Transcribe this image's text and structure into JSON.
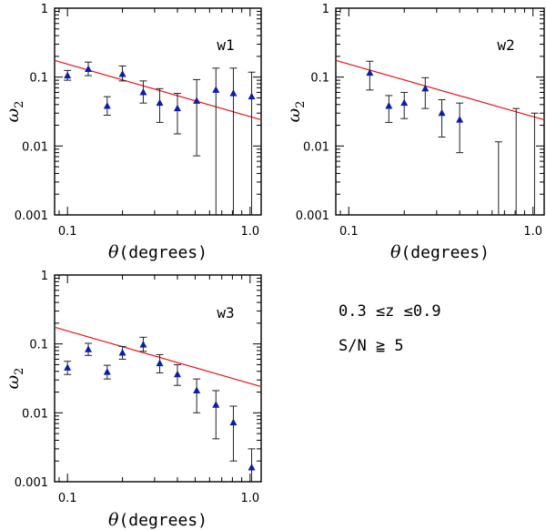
{
  "chart_data": [
    {
      "type": "scatter",
      "panel_label": "w1",
      "xlabel_symbol": "θ",
      "xlabel_text": "(degrees)",
      "ylabel_symbol": "ω",
      "ylabel_sub": "2",
      "x_scale": "log",
      "y_scale": "log",
      "xlim": [
        0.085,
        1.15
      ],
      "ylim": [
        0.001,
        1
      ],
      "x_ticks": [
        {
          "v": 0.1,
          "label": "0.1"
        },
        {
          "v": 1.0,
          "label": "1.0"
        }
      ],
      "y_ticks": [
        {
          "v": 0.001,
          "label": "0.001"
        },
        {
          "v": 0.01,
          "label": "0.01"
        },
        {
          "v": 0.1,
          "label": "0.1"
        },
        {
          "v": 1,
          "label": "1"
        }
      ],
      "fit_line": {
        "color": "#e8141c",
        "x": [
          0.085,
          1.15
        ],
        "y": [
          0.175,
          0.024
        ]
      },
      "marker_color": "#0a1fa8",
      "points": [
        {
          "x": 0.1,
          "y": 0.105,
          "lo": 0.09,
          "hi": 0.125
        },
        {
          "x": 0.13,
          "y": 0.13,
          "lo": 0.105,
          "hi": 0.165
        },
        {
          "x": 0.165,
          "y": 0.038,
          "lo": 0.028,
          "hi": 0.052
        },
        {
          "x": 0.2,
          "y": 0.11,
          "lo": 0.088,
          "hi": 0.145
        },
        {
          "x": 0.26,
          "y": 0.06,
          "lo": 0.042,
          "hi": 0.088
        },
        {
          "x": 0.32,
          "y": 0.042,
          "lo": 0.022,
          "hi": 0.068
        },
        {
          "x": 0.4,
          "y": 0.035,
          "lo": 0.015,
          "hi": 0.058
        },
        {
          "x": 0.51,
          "y": 0.045,
          "lo": 0.0072,
          "hi": 0.092
        },
        {
          "x": 0.65,
          "y": 0.065,
          "lo": 0.001,
          "hi": 0.135
        },
        {
          "x": 0.81,
          "y": 0.058,
          "lo": 0.001,
          "hi": 0.135
        },
        {
          "x": 1.02,
          "y": 0.052,
          "lo": 0.001,
          "hi": 0.118
        }
      ]
    },
    {
      "type": "scatter",
      "panel_label": "w2",
      "xlabel_symbol": "θ",
      "xlabel_text": "(degrees)",
      "ylabel_symbol": "ω",
      "ylabel_sub": "2",
      "x_scale": "log",
      "y_scale": "log",
      "xlim": [
        0.085,
        1.15
      ],
      "ylim": [
        0.001,
        1
      ],
      "x_ticks": [
        {
          "v": 0.1,
          "label": "0.1"
        },
        {
          "v": 1.0,
          "label": "1.0"
        }
      ],
      "y_ticks": [
        {
          "v": 0.001,
          "label": "0.001"
        },
        {
          "v": 0.01,
          "label": "0.01"
        },
        {
          "v": 0.1,
          "label": "0.1"
        },
        {
          "v": 1,
          "label": "1"
        }
      ],
      "fit_line": {
        "color": "#e8141c",
        "x": [
          0.085,
          1.15
        ],
        "y": [
          0.175,
          0.024
        ]
      },
      "marker_color": "#0a1fa8",
      "points": [
        {
          "x": 0.13,
          "y": 0.115,
          "lo": 0.065,
          "hi": 0.17
        },
        {
          "x": 0.165,
          "y": 0.038,
          "lo": 0.022,
          "hi": 0.054
        },
        {
          "x": 0.2,
          "y": 0.042,
          "lo": 0.025,
          "hi": 0.06
        },
        {
          "x": 0.26,
          "y": 0.068,
          "lo": 0.035,
          "hi": 0.098
        },
        {
          "x": 0.32,
          "y": 0.03,
          "lo": 0.0135,
          "hi": 0.047
        },
        {
          "x": 0.4,
          "y": 0.024,
          "lo": 0.008,
          "hi": 0.042
        },
        {
          "x": 0.65,
          "y": null,
          "lo": 0.001,
          "hi": 0.0115
        },
        {
          "x": 0.81,
          "y": null,
          "lo": 0.001,
          "hi": 0.035
        },
        {
          "x": 1.02,
          "y": null,
          "lo": 0.001,
          "hi": 0.03
        }
      ]
    },
    {
      "type": "scatter",
      "panel_label": "w3",
      "xlabel_symbol": "θ",
      "xlabel_text": "(degrees)",
      "ylabel_symbol": "ω",
      "ylabel_sub": "2",
      "x_scale": "log",
      "y_scale": "log",
      "xlim": [
        0.085,
        1.15
      ],
      "ylim": [
        0.001,
        1
      ],
      "x_ticks": [
        {
          "v": 0.1,
          "label": "0.1"
        },
        {
          "v": 1.0,
          "label": "1.0"
        }
      ],
      "y_ticks": [
        {
          "v": 0.001,
          "label": "0.001"
        },
        {
          "v": 0.01,
          "label": "0.01"
        },
        {
          "v": 0.1,
          "label": "0.1"
        },
        {
          "v": 1,
          "label": "1"
        }
      ],
      "fit_line": {
        "color": "#e8141c",
        "x": [
          0.085,
          1.15
        ],
        "y": [
          0.175,
          0.024
        ]
      },
      "marker_color": "#0a1fa8",
      "points": [
        {
          "x": 0.1,
          "y": 0.045,
          "lo": 0.036,
          "hi": 0.056
        },
        {
          "x": 0.13,
          "y": 0.083,
          "lo": 0.068,
          "hi": 0.102
        },
        {
          "x": 0.165,
          "y": 0.039,
          "lo": 0.031,
          "hi": 0.049
        },
        {
          "x": 0.2,
          "y": 0.074,
          "lo": 0.06,
          "hi": 0.092
        },
        {
          "x": 0.26,
          "y": 0.097,
          "lo": 0.078,
          "hi": 0.125
        },
        {
          "x": 0.32,
          "y": 0.052,
          "lo": 0.038,
          "hi": 0.07
        },
        {
          "x": 0.4,
          "y": 0.036,
          "lo": 0.025,
          "hi": 0.05
        },
        {
          "x": 0.51,
          "y": 0.021,
          "lo": 0.01,
          "hi": 0.031
        },
        {
          "x": 0.65,
          "y": 0.013,
          "lo": 0.0042,
          "hi": 0.021
        },
        {
          "x": 0.81,
          "y": 0.0072,
          "lo": 0.002,
          "hi": 0.0125
        },
        {
          "x": 1.02,
          "y": 0.0016,
          "lo": 0.001,
          "hi": 0.003
        }
      ]
    }
  ],
  "annotations": {
    "redshift_range": "0.3 ≤z ≤0.9",
    "sn_cut": "S/N ≧ 5"
  }
}
